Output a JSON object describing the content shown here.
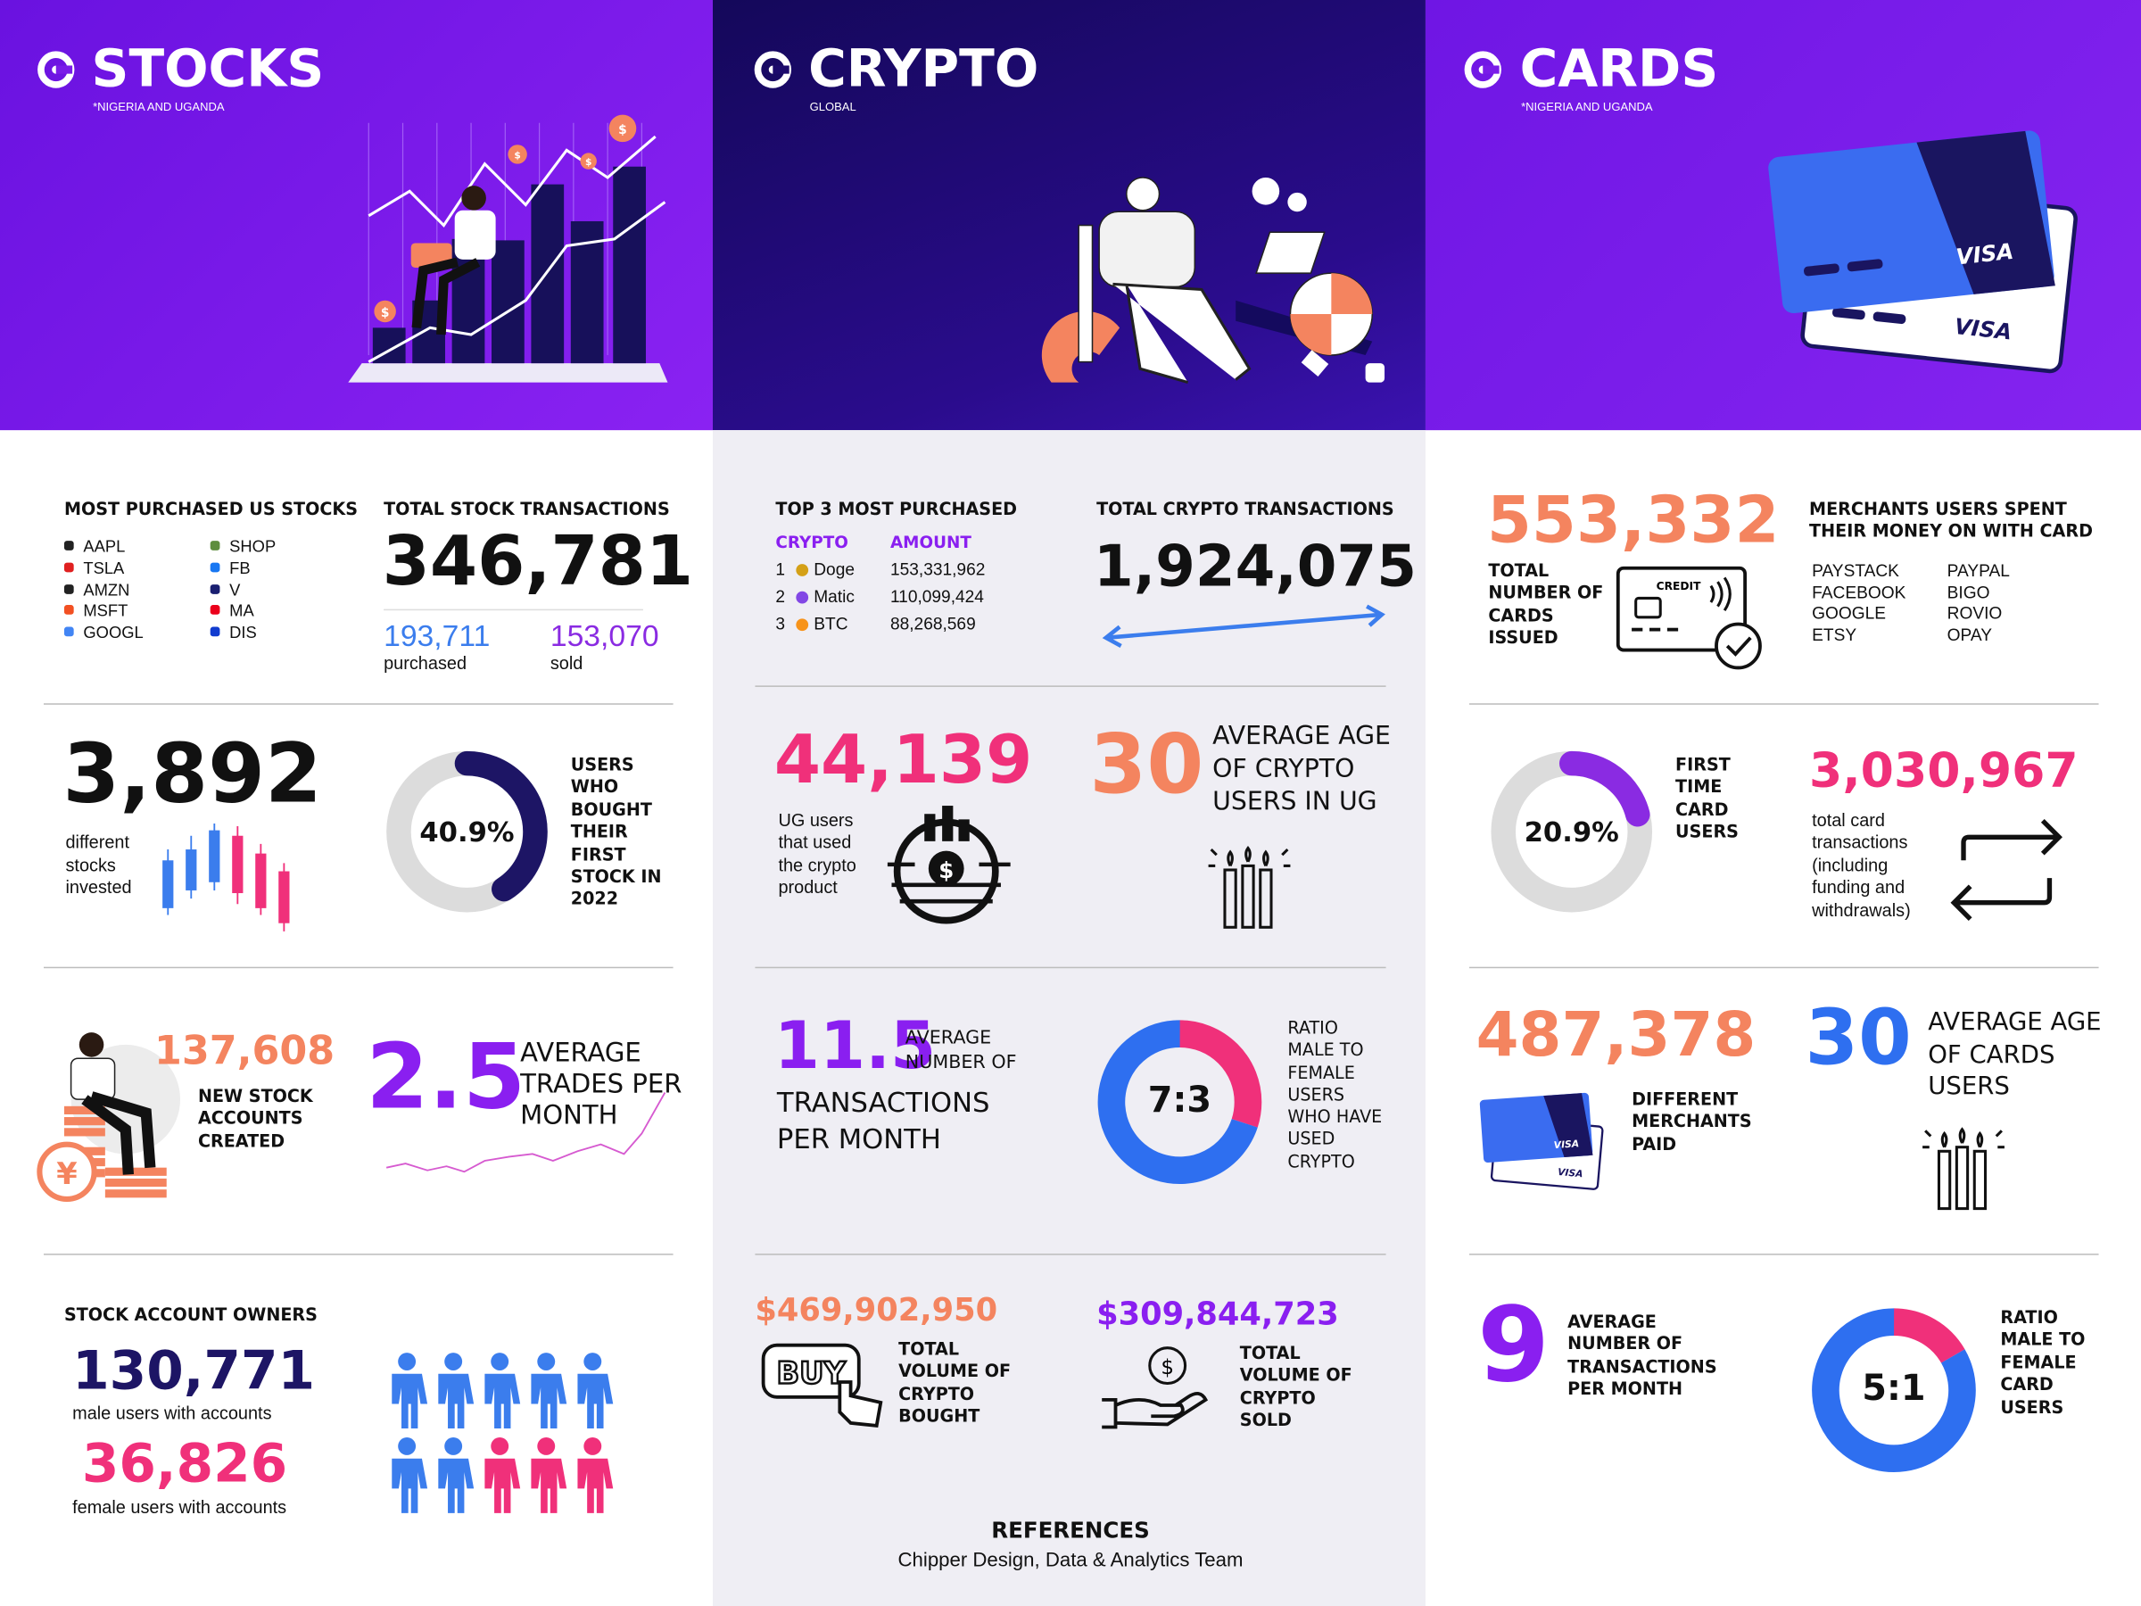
{
  "stocks": {
    "title": "STOCKS",
    "subtitle": "*NIGERIA AND UGANDA",
    "currency_symbol": "$",
    "most_purchased": {
      "heading": "MOST PURCHASED US STOCKS",
      "items": [
        "AAPL",
        "TSLA",
        "AMZN",
        "MSFT",
        "GOOGL",
        "SHOP",
        "FB",
        "V",
        "MA",
        "DIS"
      ]
    },
    "total_transactions": {
      "heading": "TOTAL STOCK TRANSACTIONS",
      "value": "346,781",
      "purchased": "193,711",
      "purchased_label": "purchased",
      "sold": "153,070",
      "sold_label": "sold"
    },
    "stocks_invested": {
      "value": "3,892",
      "label": "different stocks invested"
    },
    "first_stock": {
      "value": 40.9,
      "label": "40.9%",
      "caption": "USERS WHO BOUGHT THEIR FIRST STOCK IN 2022"
    },
    "new_accounts": {
      "value": "137,608",
      "caption": "NEW STOCK ACCOUNTS CREATED"
    },
    "avg_trades": {
      "value": "2.5",
      "caption": "AVERAGE TRADES PER MONTH"
    },
    "account_owners": {
      "heading": "STOCK ACCOUNT OWNERS",
      "male": "130,771",
      "male_label": "male users with accounts",
      "female": "36,826",
      "female_label": "female users with accounts"
    }
  },
  "crypto": {
    "title": "CRYPTO",
    "subtitle": "GLOBAL",
    "currency_symbol": "$",
    "top3": {
      "heading": "TOP 3 MOST PURCHASED",
      "columns": [
        "CRYPTO",
        "AMOUNT"
      ],
      "rows": [
        [
          "1",
          "Doge",
          "153,331,962"
        ],
        [
          "2",
          "Matic",
          "110,099,424"
        ],
        [
          "3",
          "BTC",
          "88,268,569"
        ]
      ]
    },
    "total": {
      "heading": "TOTAL CRYPTO TRANSACTIONS",
      "value": "1,924,075"
    },
    "ug_users": {
      "value": "44,139",
      "label": "UG users that used the crypto product"
    },
    "avg_age": {
      "value": "30",
      "caption": "AVERAGE AGE OF CRYPTO USERS IN UG"
    },
    "avg_tx": {
      "value": "11.5",
      "caption_top": "AVERAGE NUMBER OF",
      "caption_bottom": "TRANSACTIONS PER MONTH"
    },
    "ratio": {
      "parts": [
        7,
        3
      ],
      "label": "7:3",
      "caption": "RATIO MALE TO FEMALE USERS WHO HAVE USED CRYPTO"
    },
    "bought": {
      "value": "$469,902,950",
      "icon_text": "BUY",
      "caption": "TOTAL VOLUME OF CRYPTO BOUGHT"
    },
    "sold": {
      "value": "$309,844,723",
      "caption": "TOTAL VOLUME OF CRYPTO SOLD"
    },
    "references": {
      "title": "REFERENCES",
      "text": "Chipper Design, Data & Analytics Team"
    }
  },
  "cards": {
    "title": "CARDS",
    "subtitle": "*NIGERIA AND UGANDA",
    "card_brand": "VISA",
    "issued": {
      "value": "553,332",
      "icon_text": "CREDIT",
      "caption": "TOTAL NUMBER OF CARDS ISSUED"
    },
    "merchants": {
      "heading": "MERCHANTS USERS SPENT THEIR MONEY ON WITH CARD",
      "items": [
        "PAYSTACK",
        "FACEBOOK",
        "GOOGLE",
        "ETSY",
        "PAYPAL",
        "BIGO",
        "ROVIO",
        "OPAY"
      ]
    },
    "first_time": {
      "value": 20.9,
      "label": "20.9%",
      "caption": "FIRST TIME CARD USERS"
    },
    "total_card_tx": {
      "value": "3,030,967",
      "caption": "total card transactions (including funding and withdrawals)"
    },
    "merchants_paid": {
      "value": "487,378",
      "caption": "DIFFERENT MERCHANTS PAID"
    },
    "avg_age": {
      "value": "30",
      "caption": "AVERAGE AGE OF CARDS USERS"
    },
    "avg_tx": {
      "value": "9",
      "caption": "AVERAGE NUMBER OF TRANSACTIONS PER MONTH"
    },
    "ratio": {
      "parts": [
        5,
        1
      ],
      "label": "5:1",
      "caption": "RATIO MALE TO FEMALE CARD USERS"
    }
  }
}
